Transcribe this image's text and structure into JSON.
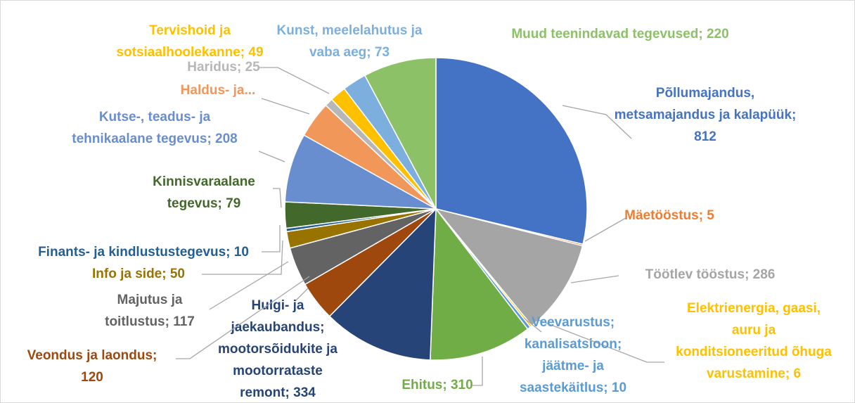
{
  "chart_data": {
    "type": "pie",
    "values": [
      812,
      5,
      286,
      6,
      10,
      310,
      334,
      120,
      117,
      50,
      10,
      79,
      208,
      110,
      25,
      49,
      73,
      220
    ],
    "value_labels": [
      [
        "Põllumajandus,",
        "metsamajandus ja kalapüük;",
        "812"
      ],
      [
        "Mäetööstus; 5"
      ],
      [
        "Töötlev tööstus; 286"
      ],
      [
        "Elektrienergia, gaasi,",
        "auru ja",
        "konditsioneeritud õhuga",
        "varustamine; 6"
      ],
      [
        "Veevarustus;",
        "kanalisatsioon;",
        "jäätme- ja",
        "saastekäitlus; 10"
      ],
      [
        "Ehitus; 310"
      ],
      [
        "Hulgi- ja",
        "jaekaubandus;",
        "mootorsõidukite ja",
        "mootorrataste",
        "remont; 334"
      ],
      [
        "Veondus ja laondus;",
        "120"
      ],
      [
        "Majutus ja",
        "toitlustus;  117"
      ],
      [
        "Info ja side; 50"
      ],
      [
        "Finants- ja kindlustustegevus; 10"
      ],
      [
        "Kinnisvaraalane",
        "tegevus; 79"
      ],
      [
        "Kutse-, teadus- ja",
        "tehnikaalane tegevus; 208"
      ],
      [
        "Haldus- ja..."
      ],
      [
        "Haridus; 25"
      ],
      [
        "Tervishoid ja",
        "sotsiaalhoolekanne; 49"
      ],
      [
        "Kunst, meelelahutus ja",
        "vaba aeg; 73"
      ],
      [
        "Muud teenindavad tegevused; 220"
      ]
    ],
    "colors": [
      "#4472c4",
      "#ed7d31",
      "#a5a5a5",
      "#ffc000",
      "#5b9bd5",
      "#70ad47",
      "#264478",
      "#9e480e",
      "#636363",
      "#997300",
      "#255e91",
      "#43682b",
      "#698ed0",
      "#f1975a",
      "#b7b7b7",
      "#ffc000",
      "#7cafdd",
      "#8cc168"
    ]
  }
}
